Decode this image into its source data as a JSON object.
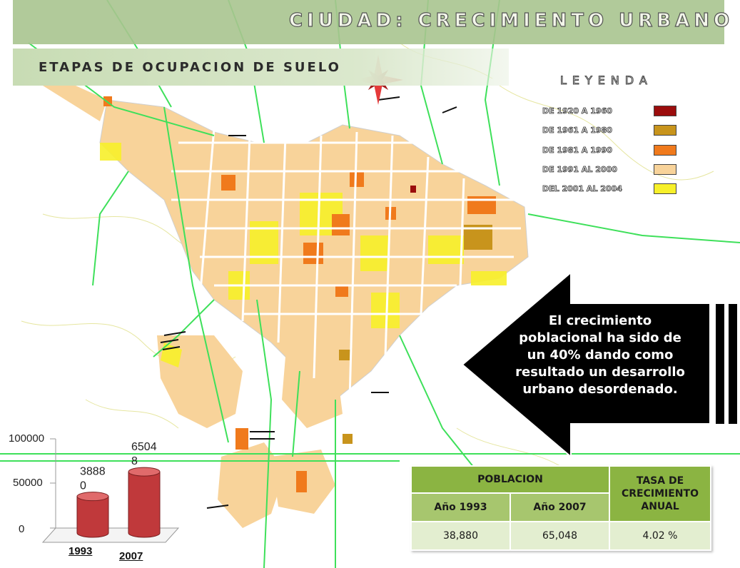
{
  "header": {
    "title": "CIUDAD: CRECIMIENTO  URBANO"
  },
  "subheader": {
    "title": "ETAPAS DE OCUPACION DE SUELO"
  },
  "legend": {
    "title": "LEYENDA",
    "items": [
      {
        "label": "DE 1920 A 1960",
        "color": "#9b0d0d"
      },
      {
        "label": "DE 1961 A 1980",
        "color": "#c8941c"
      },
      {
        "label": "DE 1981 A 1990",
        "color": "#f07a1c"
      },
      {
        "label": "DE 1991 AL 2000",
        "color": "#f8d39a"
      },
      {
        "label": "DEL 2001 AL 2004",
        "color": "#f7f02a"
      }
    ]
  },
  "callout": {
    "text": "El crecimiento poblacional ha sido de un 40% dando como resultado un desarrollo urbano desordenado."
  },
  "chart_data": {
    "type": "bar",
    "categories": [
      "1993",
      "2007"
    ],
    "values": [
      38880,
      65048
    ],
    "data_labels": [
      "3888\n0",
      "6504\n8"
    ],
    "yticks": [
      "100000",
      "50000",
      "0"
    ],
    "ylim": [
      0,
      100000
    ],
    "bar_color": "#c0393b"
  },
  "table": {
    "header_poblacion": "POBLACION",
    "header_tasa": "TASA DE CRECIMIENTO ANUAL",
    "year1": "Año  1993",
    "year2": "Año  2007",
    "val1": "38,880",
    "val2": "65,048",
    "rate": "4.02 %"
  }
}
